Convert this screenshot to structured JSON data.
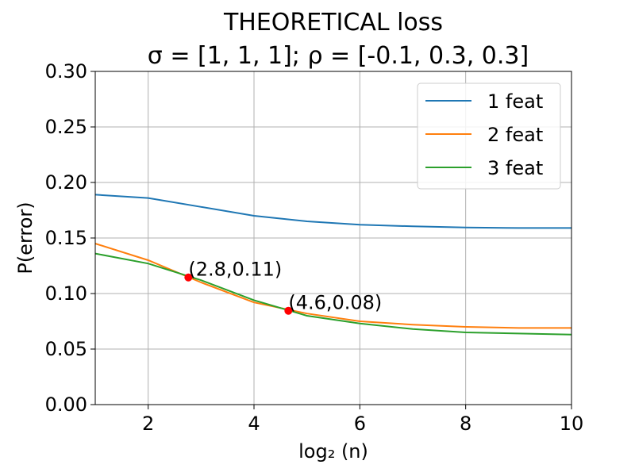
{
  "chart_data": {
    "type": "line",
    "title": "THEORETICAL loss",
    "subtitle": "σ = [1, 1, 1];  ρ = [-0.1, 0.3, 0.3]",
    "xlabel": "log₂ (n)",
    "ylabel": "P(error)",
    "xlim": [
      1,
      10
    ],
    "ylim": [
      0.0,
      0.3
    ],
    "xticks": [
      2,
      4,
      6,
      8,
      10
    ],
    "xtick_labels": [
      "2",
      "4",
      "6",
      "8",
      "10"
    ],
    "yticks": [
      0.0,
      0.05,
      0.1,
      0.15,
      0.2,
      0.25,
      0.3
    ],
    "ytick_labels": [
      "0.00",
      "0.05",
      "0.10",
      "0.15",
      "0.20",
      "0.25",
      "0.30"
    ],
    "grid": true,
    "legend_position": "top-right",
    "x": [
      1,
      2,
      3,
      4,
      5,
      6,
      7,
      8,
      9,
      10
    ],
    "series": [
      {
        "name": "1 feat",
        "color": "#1f77b4",
        "values": [
          0.189,
          0.186,
          0.178,
          0.17,
          0.165,
          0.162,
          0.1605,
          0.1595,
          0.159,
          0.159
        ]
      },
      {
        "name": "2 feat",
        "color": "#ff7f0e",
        "values": [
          0.145,
          0.13,
          0.11,
          0.092,
          0.082,
          0.075,
          0.072,
          0.07,
          0.069,
          0.069
        ]
      },
      {
        "name": "3 feat",
        "color": "#2ca02c",
        "values": [
          0.136,
          0.127,
          0.112,
          0.094,
          0.08,
          0.073,
          0.068,
          0.065,
          0.064,
          0.063
        ]
      }
    ],
    "annotations": [
      {
        "x": 2.76,
        "y": 0.1145,
        "label": "(2.8,0.11)",
        "color": "#ff0000"
      },
      {
        "x": 4.65,
        "y": 0.0845,
        "label": "(4.6,0.08)",
        "color": "#ff0000"
      }
    ]
  }
}
